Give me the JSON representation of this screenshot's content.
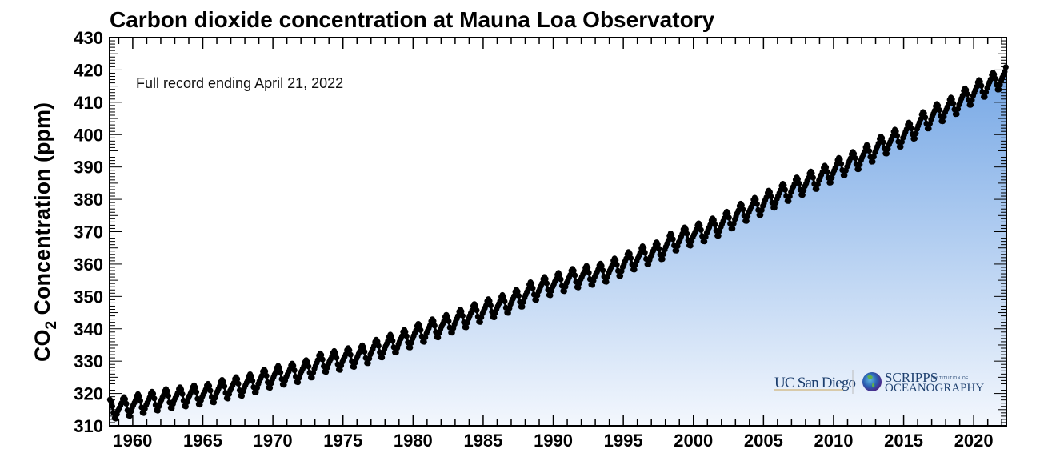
{
  "chart_data": {
    "type": "scatter",
    "title": "Carbon dioxide concentration at Mauna Loa Observatory",
    "xlabel": "",
    "ylabel": "CO2 Concentration (ppm)",
    "ylabel_main": "CO",
    "ylabel_sub": "2",
    "ylabel_rest": " Concentration (ppm)",
    "annotation": "Full record ending April 21, 2022",
    "xlim": [
      1958.35,
      2022.33
    ],
    "ylim": [
      310,
      430
    ],
    "x_ticks": [
      1960,
      1965,
      1970,
      1975,
      1980,
      1985,
      1990,
      1995,
      2000,
      2005,
      2010,
      2015,
      2020
    ],
    "y_ticks": [
      310,
      320,
      330,
      340,
      350,
      360,
      370,
      380,
      390,
      400,
      410,
      420,
      430
    ],
    "grid": false,
    "annual_mean_years": [
      1958,
      1959,
      1960,
      1961,
      1962,
      1963,
      1964,
      1965,
      1966,
      1967,
      1968,
      1969,
      1970,
      1971,
      1972,
      1973,
      1974,
      1975,
      1976,
      1977,
      1978,
      1979,
      1980,
      1981,
      1982,
      1983,
      1984,
      1985,
      1986,
      1987,
      1988,
      1989,
      1990,
      1991,
      1992,
      1993,
      1994,
      1995,
      1996,
      1997,
      1998,
      1999,
      2000,
      2001,
      2002,
      2003,
      2004,
      2005,
      2006,
      2007,
      2008,
      2009,
      2010,
      2011,
      2012,
      2013,
      2014,
      2015,
      2016,
      2017,
      2018,
      2019,
      2020,
      2021,
      2022
    ],
    "annual_mean_ppm": [
      315.2,
      315.98,
      316.91,
      317.64,
      318.45,
      318.99,
      319.62,
      320.04,
      321.37,
      322.18,
      323.05,
      324.62,
      325.68,
      326.32,
      327.46,
      329.68,
      330.19,
      331.13,
      332.03,
      333.84,
      335.41,
      336.84,
      338.76,
      340.12,
      341.48,
      343.15,
      344.87,
      346.35,
      347.61,
      349.31,
      351.69,
      353.2,
      354.45,
      355.7,
      356.54,
      357.21,
      358.96,
      360.97,
      362.74,
      363.88,
      366.84,
      368.54,
      369.71,
      371.32,
      373.45,
      375.98,
      377.7,
      379.98,
      382.09,
      384.02,
      385.83,
      387.64,
      390.1,
      391.85,
      394.06,
      396.74,
      398.81,
      401.01,
      404.41,
      406.76,
      408.72,
      411.65,
      414.21,
      416.41,
      418.9
    ],
    "seasonal_offset_ppm": [
      -0.1,
      0.6,
      1.3,
      2.5,
      3.0,
      2.3,
      0.8,
      -1.3,
      -3.0,
      -3.2,
      -1.9,
      -0.8
    ],
    "colors": {
      "fill_top": "#6fa3e4",
      "fill_bottom": "#f3f7fd",
      "points": "#000000"
    }
  },
  "logos": {
    "ucsd": "UC San Diego",
    "scripps_line1": "SCRIPPS",
    "scripps_small": "INSTITUTION OF",
    "scripps_line2": "OCEANOGRAPHY"
  }
}
